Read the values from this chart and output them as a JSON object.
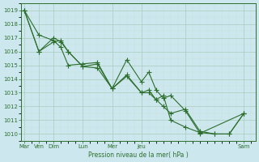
{
  "xlabel": "Pression niveau de la mer( hPa )",
  "bg_color": "#cce8ee",
  "grid_color_major": "#aaccbb",
  "grid_color_minor": "#ccddd8",
  "line_color": "#2d6e2d",
  "ylim": [
    1009.5,
    1019.5
  ],
  "yticks": [
    1010,
    1011,
    1012,
    1013,
    1014,
    1015,
    1016,
    1017,
    1018,
    1019
  ],
  "xtick_positions": [
    0.0,
    0.5,
    1.0,
    2.0,
    3.0,
    4.0,
    5.5,
    7.5
  ],
  "xtick_labels": [
    "Mar",
    "Ven",
    "Dim",
    "Lun",
    "Mer",
    "Jeu",
    "",
    "Sam"
  ],
  "xlim": [
    -0.1,
    7.9
  ],
  "line1_x": [
    0.0,
    0.5,
    1.0,
    1.25,
    1.5,
    2.0,
    2.5,
    3.0,
    3.5,
    4.0,
    4.25,
    4.5,
    4.75,
    5.0,
    5.5,
    6.0,
    7.5
  ],
  "line1_y": [
    1019.0,
    1017.2,
    1016.8,
    1016.3,
    1015.0,
    1015.1,
    1015.2,
    1013.3,
    1015.4,
    1013.8,
    1014.5,
    1013.2,
    1012.6,
    1012.8,
    1011.7,
    1010.05,
    1011.5
  ],
  "line2_x": [
    0.0,
    0.5,
    1.0,
    1.25,
    1.5,
    2.0,
    2.5,
    3.0,
    3.5,
    4.0,
    4.25,
    4.5,
    4.75,
    5.0,
    5.5,
    6.0,
    6.5,
    7.0,
    7.5
  ],
  "line2_y": [
    1019.0,
    1016.0,
    1016.7,
    1016.8,
    1016.0,
    1014.9,
    1015.1,
    1013.3,
    1014.3,
    1013.0,
    1013.2,
    1012.5,
    1012.8,
    1011.0,
    1010.5,
    1010.1,
    1010.0,
    1010.0,
    1011.5
  ],
  "line3_x": [
    0.0,
    0.5,
    1.0,
    1.25,
    1.5,
    2.0,
    2.5,
    3.0,
    3.5,
    4.0,
    4.25,
    4.5,
    4.75,
    5.0,
    5.5,
    6.0,
    6.5,
    7.0,
    7.5
  ],
  "line3_y": [
    1019.0,
    1016.0,
    1017.0,
    1016.7,
    1016.0,
    1014.9,
    1014.8,
    1013.3,
    1014.2,
    1013.0,
    1013.0,
    1012.5,
    1012.0,
    1011.5,
    1011.8,
    1010.2,
    1010.0,
    1010.0,
    1011.5
  ]
}
